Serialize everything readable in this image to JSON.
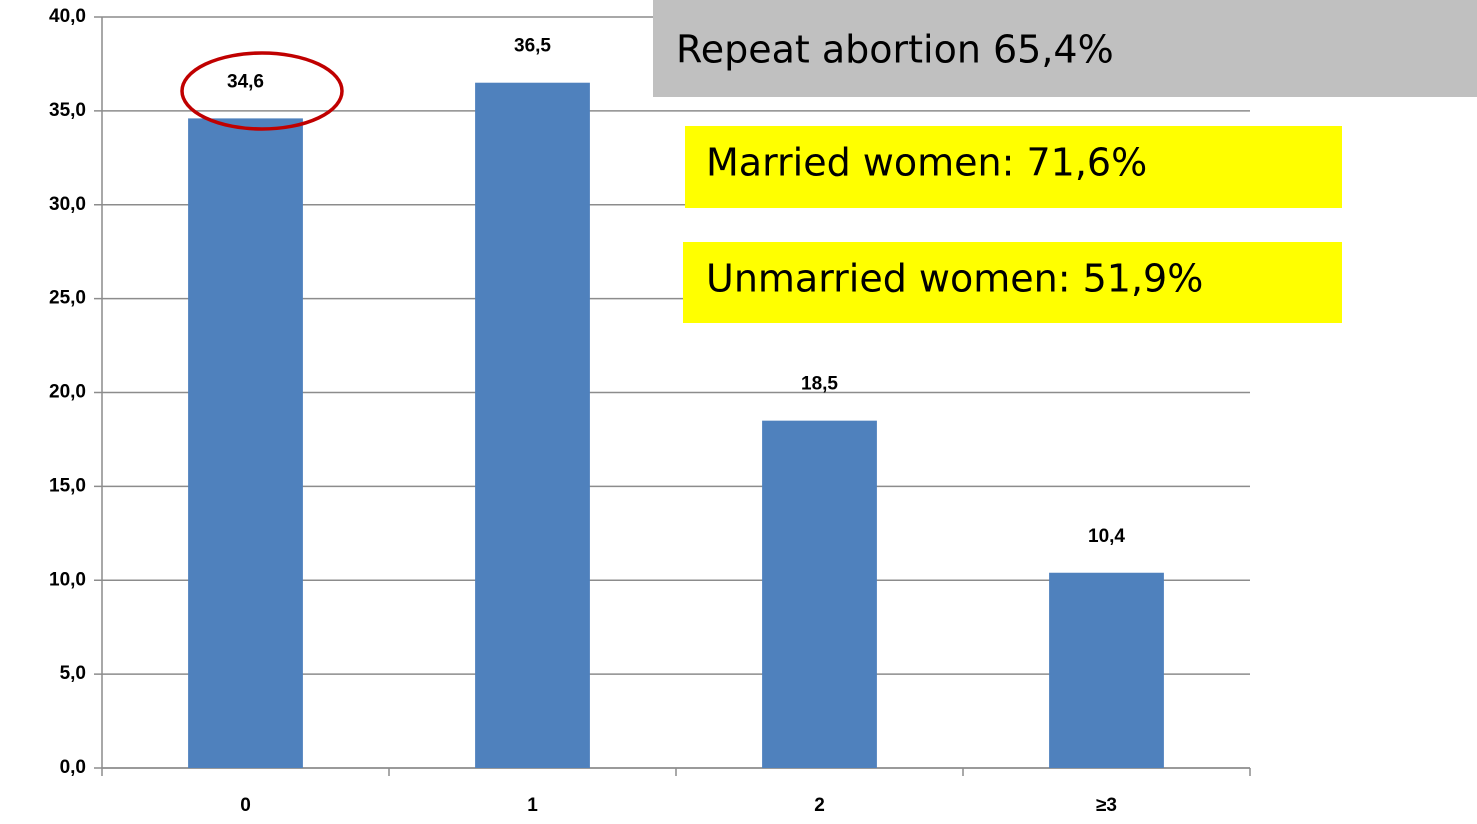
{
  "chart_data": {
    "type": "bar",
    "categories": [
      "0",
      "1",
      "2",
      "≥3"
    ],
    "values": [
      34.6,
      36.5,
      18.5,
      10.4
    ],
    "value_labels": [
      "34,6",
      "36,5",
      "18,5",
      "10,4"
    ],
    "color": "#4f81bd",
    "ylim": [
      0,
      40
    ],
    "yticks": [
      {
        "value": 0,
        "label": "0,0"
      },
      {
        "value": 5,
        "label": "5,0"
      },
      {
        "value": 10,
        "label": "10,0"
      },
      {
        "value": 15,
        "label": "15,0"
      },
      {
        "value": 20,
        "label": "20,0"
      },
      {
        "value": 25,
        "label": "25,0"
      },
      {
        "value": 30,
        "label": "30,0"
      },
      {
        "value": 35,
        "label": "35,0"
      },
      {
        "value": 40,
        "label": "40,0"
      }
    ],
    "grid": true,
    "annotations": [
      {
        "text": "Repeat abortion 65,4%",
        "background": "#c0c0c0"
      },
      {
        "text": "Married women: 71,6%",
        "background": "#ffff00"
      },
      {
        "text": "Unmarried women: 51,9%",
        "background": "#ffff00"
      }
    ]
  }
}
